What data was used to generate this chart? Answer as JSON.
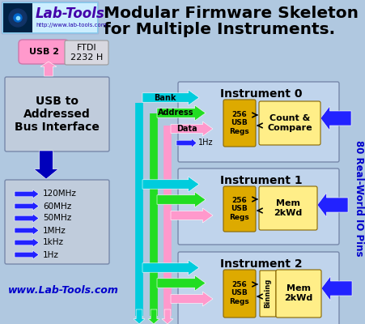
{
  "bg_color": "#b0c8e0",
  "title1": "Modular Firmware Skeleton",
  "title2": "for Multiple Instruments.",
  "logo_text": "Lab-Tools",
  "logo_url": "http://www.lab-tools.com",
  "website": "www.Lab-Tools.com",
  "usb_label": "USB 2",
  "ftdi_label": "FTDI\n2232 H",
  "bus_label": "USB to\nAddressed\nBus Interface",
  "io_pins_label": "80 Real-World IO Pins",
  "clocks": [
    "120MHz",
    "60MHz",
    "50MHz",
    "1MHz",
    "1kHz",
    "1Hz"
  ],
  "instruments": [
    "Instrument 0",
    "Instrument 1",
    "Instrument 2"
  ],
  "regs_label": "256\nUSB\nRegs",
  "inst0_func": "Count &\nCompare",
  "inst1_func": "Mem\n2kWd",
  "inst2_func1": "Binning",
  "inst2_func2": "Mem\n2kWd",
  "bank_label": "Bank",
  "addr_label": "Address",
  "data_label": "Data",
  "hz_label": "1Hz",
  "cyan_color": "#00ccdd",
  "green_color": "#22dd22",
  "pink_color": "#ff99cc",
  "blue_dark": "#0000bb",
  "blue_bright": "#2222ff",
  "gold_color": "#ddaa00",
  "yellow_color": "#ffee88",
  "inst_bg": "#c0d4ec",
  "bus_bg": "#c0ccdc",
  "logo_bg_start": "#88ccff",
  "logo_bg_end": "#ffffff"
}
